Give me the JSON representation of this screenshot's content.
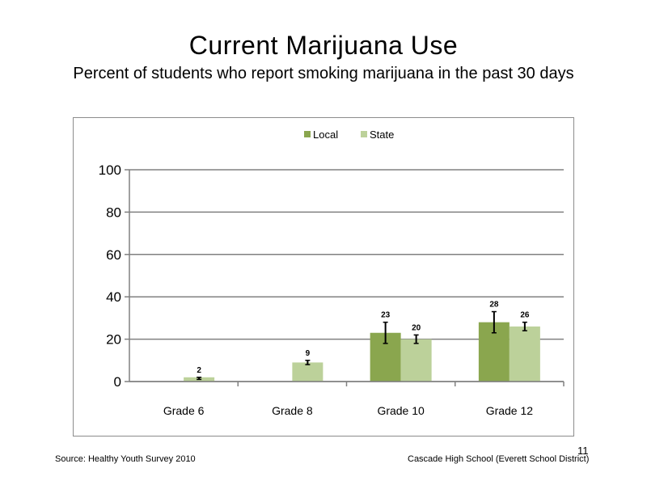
{
  "slide": {
    "page_number": "11",
    "footer_left": "Source: Healthy Youth Survey 2010",
    "footer_right": "Cascade High School (Everett School District)"
  },
  "colors": {
    "local": "#8aa64e",
    "state": "#bcd19a",
    "gridline": "#808080",
    "axis": "#808080",
    "error_bar": "#000000"
  },
  "chart_data": {
    "type": "bar",
    "title": "Current Marijuana Use",
    "subtitle": "Percent of students who report smoking marijuana in the past 30 days",
    "categories": [
      "Grade 6",
      "Grade 8",
      "Grade 10",
      "Grade 12"
    ],
    "series": [
      {
        "name": "Local",
        "values": [
          null,
          null,
          23,
          28
        ],
        "error": [
          null,
          null,
          [
            18,
            28
          ],
          [
            23,
            33
          ]
        ]
      },
      {
        "name": "State",
        "values": [
          2,
          9,
          20,
          26
        ],
        "error": [
          [
            1,
            2
          ],
          [
            8,
            10
          ],
          [
            18,
            22
          ],
          [
            24,
            28
          ]
        ]
      }
    ],
    "ylim": [
      0,
      100
    ],
    "yticks": [
      0,
      20,
      40,
      60,
      80,
      100
    ],
    "grid": true,
    "legend": "top-center",
    "data_labels": true
  }
}
